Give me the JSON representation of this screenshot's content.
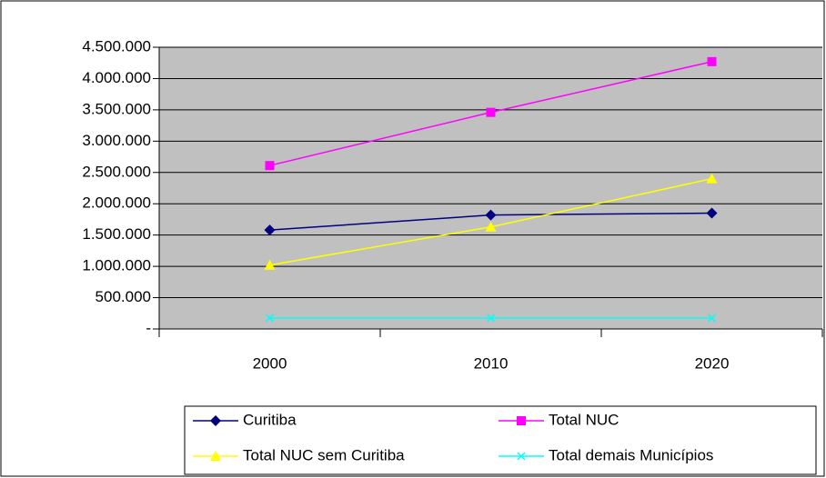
{
  "chart_data": {
    "type": "line",
    "categories": [
      "2000",
      "2010",
      "2020"
    ],
    "series": [
      {
        "name": "Curitiba",
        "color": "#000080",
        "marker": "diamond",
        "values": [
          1580000,
          1820000,
          1850000
        ]
      },
      {
        "name": "Total NUC",
        "color": "#FF00FF",
        "marker": "square",
        "values": [
          2610000,
          3460000,
          4270000
        ]
      },
      {
        "name": "Total NUC sem Curitiba",
        "color": "#FFFF00",
        "marker": "triangle",
        "values": [
          1020000,
          1630000,
          2400000
        ]
      },
      {
        "name": "Total demais Municípios",
        "color": "#00FFFF",
        "marker": "x",
        "values": [
          175000,
          175000,
          175000
        ]
      }
    ],
    "ylim": [
      0,
      4500000
    ],
    "yticks": [
      {
        "value": 0,
        "label": "-"
      },
      {
        "value": 500000,
        "label": "500.000"
      },
      {
        "value": 1000000,
        "label": "1.000.000"
      },
      {
        "value": 1500000,
        "label": "1.500.000"
      },
      {
        "value": 2000000,
        "label": "2.000.000"
      },
      {
        "value": 2500000,
        "label": "2.500.000"
      },
      {
        "value": 3000000,
        "label": "3.000.000"
      },
      {
        "value": 3500000,
        "label": "3.500.000"
      },
      {
        "value": 4000000,
        "label": "4.000.000"
      },
      {
        "value": 4500000,
        "label": "4.500.000"
      }
    ],
    "grid": true,
    "plot_background": "#C0C0C0",
    "legend": "bottom"
  }
}
